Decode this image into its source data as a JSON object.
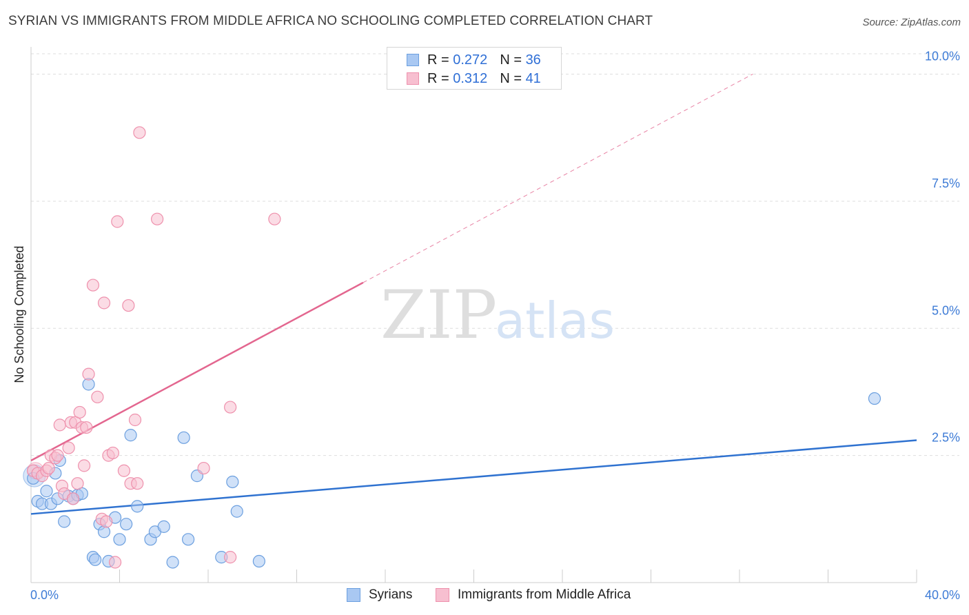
{
  "title": "SYRIAN VS IMMIGRANTS FROM MIDDLE AFRICA NO SCHOOLING COMPLETED CORRELATION CHART",
  "source": "Source: ZipAtlas.com",
  "watermark": {
    "zip": "ZIP",
    "atlas": "atlas"
  },
  "legend_top": [
    {
      "r_label": "R =",
      "r_value": "0.272",
      "n_label": "N =",
      "n_value": "36"
    },
    {
      "r_label": "R =",
      "r_value": "0.312",
      "n_label": "N =",
      "n_value": "41"
    }
  ],
  "legend_bottom": [
    "Syrians",
    "Immigrants from Middle Africa"
  ],
  "colors": {
    "syrians_fill": "#a9c8f2",
    "syrians_stroke": "#6b9fdf",
    "syrians_line": "#2f72d0",
    "africa_fill": "#f7bfd0",
    "africa_stroke": "#ee90ac",
    "africa_line": "#e3668f",
    "axis_text": "#3d7bd6",
    "grid": "#dddddd"
  },
  "chart_data": {
    "type": "scatter",
    "title": "SYRIAN VS IMMIGRANTS FROM MIDDLE AFRICA NO SCHOOLING COMPLETED CORRELATION CHART",
    "xlabel": "",
    "ylabel": "No Schooling Completed",
    "xlim": [
      0,
      40
    ],
    "ylim": [
      0,
      10.4
    ],
    "x_tick_labels": [
      "0.0%",
      "40.0%"
    ],
    "y_ticks": [
      2.5,
      5.0,
      7.5,
      10.0
    ],
    "y_tick_labels": [
      "2.5%",
      "5.0%",
      "7.5%",
      "10.0%"
    ],
    "grid": true,
    "legend_position": "top-center",
    "series": [
      {
        "name": "Syrians",
        "R": 0.272,
        "N": 36,
        "trend": {
          "x": [
            0,
            40
          ],
          "y": [
            1.35,
            2.8
          ],
          "dashed_from": null
        },
        "points": [
          [
            0.1,
            2.05
          ],
          [
            0.3,
            1.6
          ],
          [
            0.5,
            1.55
          ],
          [
            0.7,
            1.8
          ],
          [
            0.9,
            1.55
          ],
          [
            1.1,
            2.15
          ],
          [
            1.2,
            1.65
          ],
          [
            1.3,
            2.4
          ],
          [
            1.5,
            1.2
          ],
          [
            1.7,
            1.7
          ],
          [
            1.9,
            1.65
          ],
          [
            2.1,
            1.72
          ],
          [
            2.3,
            1.75
          ],
          [
            2.6,
            3.9
          ],
          [
            2.8,
            0.5
          ],
          [
            2.9,
            0.45
          ],
          [
            3.1,
            1.15
          ],
          [
            3.3,
            1.0
          ],
          [
            3.5,
            0.42
          ],
          [
            3.8,
            1.28
          ],
          [
            4.0,
            0.85
          ],
          [
            4.3,
            1.15
          ],
          [
            4.5,
            2.9
          ],
          [
            4.8,
            1.5
          ],
          [
            5.4,
            0.85
          ],
          [
            5.6,
            1.0
          ],
          [
            6.0,
            1.1
          ],
          [
            6.4,
            0.4
          ],
          [
            6.9,
            2.85
          ],
          [
            7.1,
            0.85
          ],
          [
            7.5,
            2.1
          ],
          [
            8.6,
            0.5
          ],
          [
            9.1,
            1.98
          ],
          [
            9.3,
            1.4
          ],
          [
            10.3,
            0.42
          ],
          [
            38.1,
            3.62
          ]
        ]
      },
      {
        "name": "Immigrants from Middle Africa",
        "R": 0.312,
        "N": 41,
        "trend": {
          "x": [
            0,
            15
          ],
          "y": [
            2.4,
            5.9
          ],
          "dashed_to": [
            32.6,
            10.0
          ]
        },
        "points": [
          [
            0.1,
            2.2
          ],
          [
            0.3,
            2.15
          ],
          [
            0.5,
            2.1
          ],
          [
            0.7,
            2.2
          ],
          [
            0.8,
            2.25
          ],
          [
            0.9,
            2.5
          ],
          [
            1.1,
            2.45
          ],
          [
            1.2,
            2.5
          ],
          [
            1.3,
            3.1
          ],
          [
            1.4,
            1.9
          ],
          [
            1.5,
            1.75
          ],
          [
            1.7,
            2.65
          ],
          [
            1.8,
            3.15
          ],
          [
            1.9,
            1.65
          ],
          [
            2.0,
            3.15
          ],
          [
            2.1,
            1.95
          ],
          [
            2.2,
            3.35
          ],
          [
            2.3,
            3.05
          ],
          [
            2.4,
            2.3
          ],
          [
            2.5,
            3.05
          ],
          [
            2.6,
            4.1
          ],
          [
            2.8,
            5.85
          ],
          [
            3.0,
            3.65
          ],
          [
            3.2,
            1.25
          ],
          [
            3.3,
            5.5
          ],
          [
            3.4,
            1.2
          ],
          [
            3.5,
            2.5
          ],
          [
            3.7,
            2.55
          ],
          [
            3.8,
            0.4
          ],
          [
            3.9,
            7.1
          ],
          [
            4.2,
            2.2
          ],
          [
            4.4,
            5.45
          ],
          [
            4.5,
            1.95
          ],
          [
            4.7,
            3.2
          ],
          [
            4.8,
            1.95
          ],
          [
            4.9,
            8.85
          ],
          [
            5.7,
            7.15
          ],
          [
            7.8,
            2.25
          ],
          [
            9.0,
            3.45
          ],
          [
            9.0,
            0.5
          ],
          [
            11.0,
            7.15
          ]
        ]
      }
    ]
  }
}
